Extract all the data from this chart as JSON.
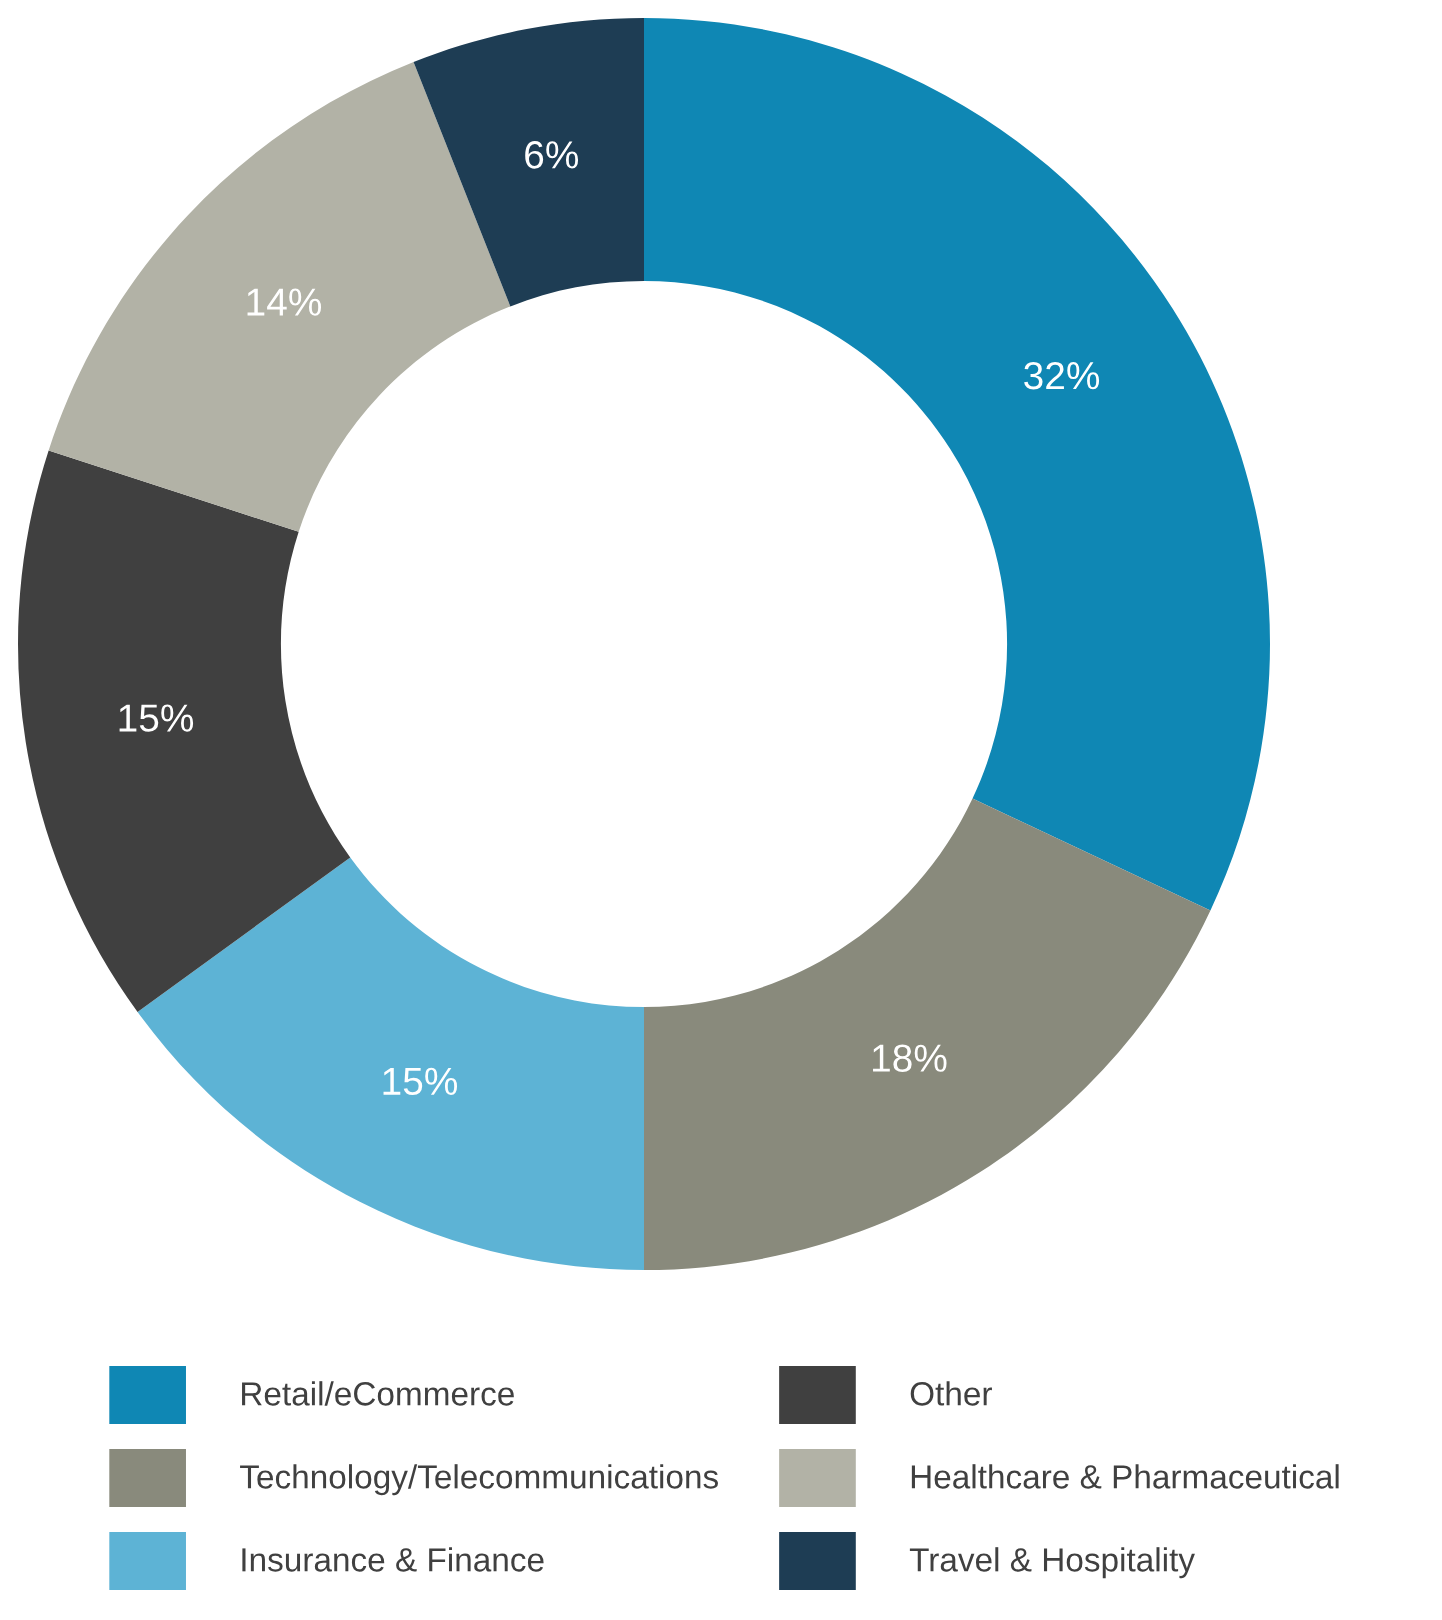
{
  "chart_data": {
    "type": "donut",
    "categories": [
      "Retail/eCommerce",
      "Technology/Telecommunications",
      "Insurance & Finance",
      "Other",
      "Healthcare & Pharmaceutical",
      "Travel & Hospitality"
    ],
    "values": [
      32,
      18,
      15,
      15,
      14,
      6
    ],
    "colors": [
      "#0f87b4",
      "#898a7c",
      "#5db3d5",
      "#404040",
      "#b2b2a6",
      "#1e3d54"
    ],
    "value_labels": [
      "32%",
      "18%",
      "15%",
      "15%",
      "14%",
      "6%"
    ],
    "legend": "bottom"
  }
}
